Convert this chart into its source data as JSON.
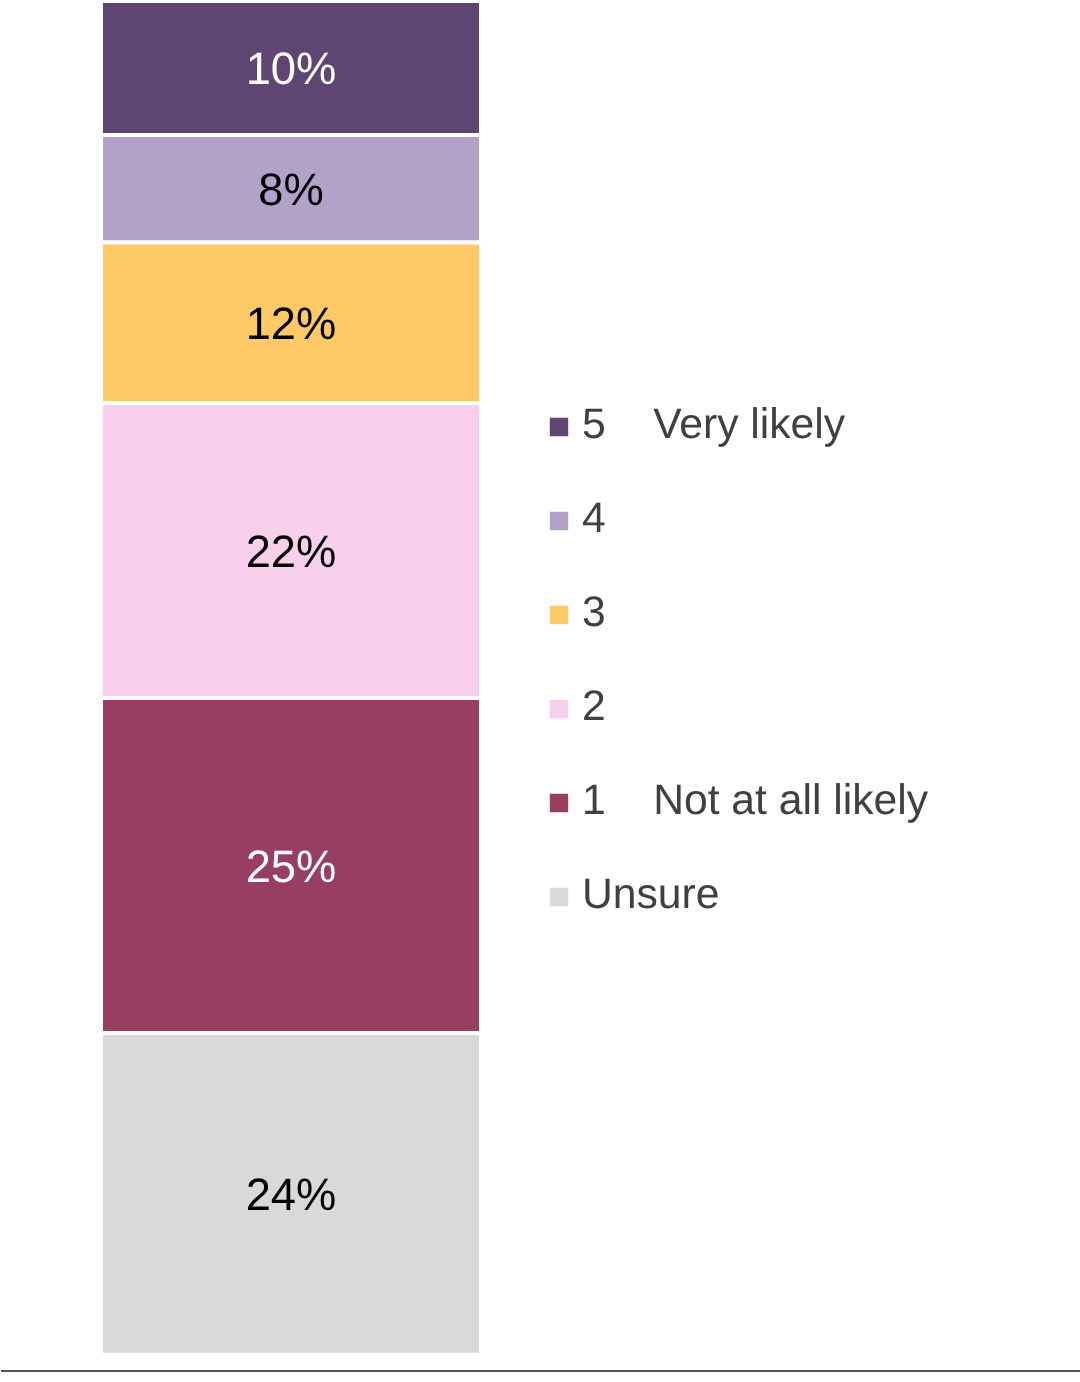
{
  "chart_data": {
    "type": "bar",
    "stacked": true,
    "categories": [
      null
    ],
    "series": [
      {
        "name": "Unsure",
        "color": "#d9d9d9",
        "values": [
          24
        ],
        "value_labels": [
          "24%"
        ]
      },
      {
        "name": "1    Not at all likely",
        "color": "#983f61",
        "values": [
          25
        ],
        "value_labels": [
          "25%"
        ]
      },
      {
        "name": "2",
        "color": "#f8d0ee",
        "values": [
          22
        ],
        "value_labels": [
          "22%"
        ]
      },
      {
        "name": "3",
        "color": "#ffc966",
        "values": [
          12
        ],
        "value_labels": [
          "12%"
        ]
      },
      {
        "name": "4",
        "color": "#b3a2c8",
        "values": [
          8
        ],
        "value_labels": [
          "8%"
        ]
      },
      {
        "name": "5    Very likely",
        "color": "#5e4572",
        "values": [
          10
        ],
        "value_labels": [
          "10%"
        ]
      }
    ],
    "legend": "right",
    "grid": false
  }
}
